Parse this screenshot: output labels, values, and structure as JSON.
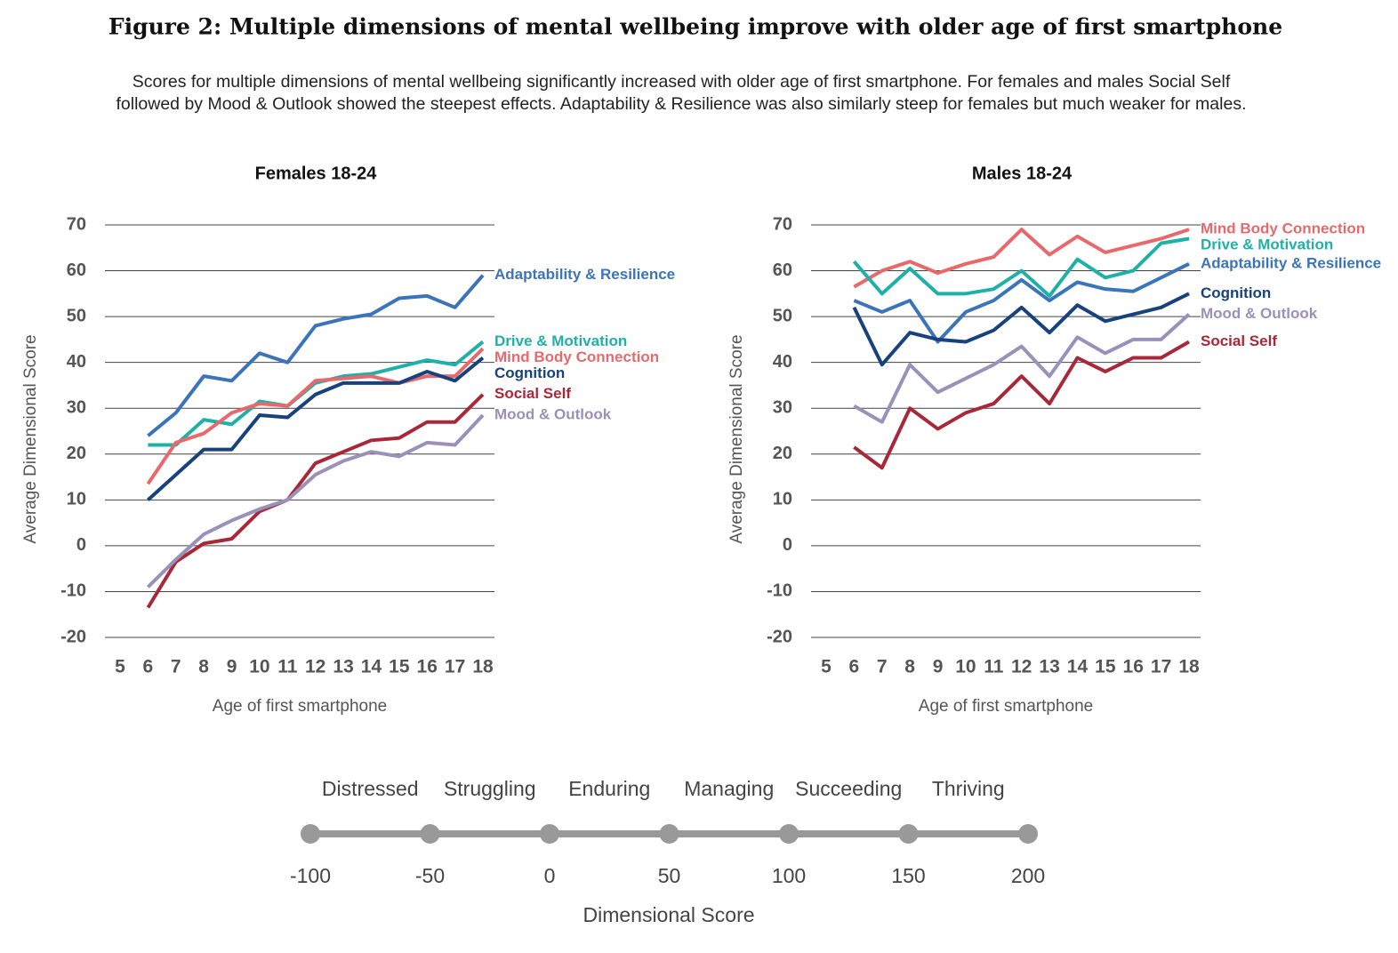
{
  "title": "Figure 2:  Multiple dimensions of mental wellbeing improve with older age of first smartphone",
  "subtitle": [
    "Scores for multiple dimensions of mental wellbeing significantly increased with older age of first smartphone. For females and males Social Self",
    "followed by Mood & Outlook showed the steepest effects. Adaptability & Resilience was also similarly steep for females but much weaker for males."
  ],
  "chart_data": [
    {
      "type": "line",
      "title": "Females 18-24",
      "xlabel": "Age of first smartphone",
      "ylabel": "Average Dimensional Score",
      "x": [
        6,
        7,
        8,
        9,
        10,
        11,
        12,
        13,
        14,
        15,
        16,
        17,
        18
      ],
      "xlim": [
        5,
        18
      ],
      "xticks": [
        5,
        6,
        7,
        8,
        9,
        10,
        11,
        12,
        13,
        14,
        15,
        16,
        17,
        18
      ],
      "ylim": [
        -20,
        70
      ],
      "yticks": [
        -20,
        -10,
        0,
        10,
        20,
        30,
        40,
        50,
        60,
        70
      ],
      "grid": true,
      "series": [
        {
          "name": "Adaptability & Resilience",
          "color": "#3b74b9",
          "values": [
            24,
            29,
            37,
            36,
            42,
            40,
            48,
            49.5,
            50.5,
            54,
            54.5,
            52,
            59
          ]
        },
        {
          "name": "Drive & Motivation",
          "color": "#1fb0a8",
          "values": [
            22,
            22,
            27.5,
            26.5,
            31.5,
            30.5,
            35.5,
            37,
            37.5,
            39,
            40.5,
            39.5,
            44.5
          ]
        },
        {
          "name": "Mind Body Connection",
          "color": "#e8696b",
          "values": [
            13.5,
            22.5,
            24.5,
            29,
            31,
            30.5,
            36,
            36.5,
            37,
            35.5,
            37,
            37,
            43
          ]
        },
        {
          "name": "Cognition",
          "color": "#17427e",
          "values": [
            10,
            15.5,
            21,
            21,
            28.5,
            28,
            33,
            35.5,
            35.5,
            35.5,
            38,
            36,
            41
          ]
        },
        {
          "name": "Social Self",
          "color": "#a8283a",
          "values": [
            -13.5,
            -3.5,
            0.5,
            1.5,
            7.5,
            10,
            18,
            20.5,
            23,
            23.5,
            27,
            27,
            33
          ]
        },
        {
          "name": "Mood & Outlook",
          "color": "#9a91bb",
          "values": [
            -9,
            -3,
            2.5,
            5.5,
            8,
            10,
            15.5,
            18.5,
            20.5,
            19.5,
            22.5,
            22,
            28.5
          ]
        }
      ]
    },
    {
      "type": "line",
      "title": "Males 18-24",
      "xlabel": "Age of first smartphone",
      "ylabel": "Average Dimensional Score",
      "x": [
        6,
        7,
        8,
        9,
        10,
        11,
        12,
        13,
        14,
        15,
        16,
        17,
        18
      ],
      "xlim": [
        5,
        18
      ],
      "xticks": [
        5,
        6,
        7,
        8,
        9,
        10,
        11,
        12,
        13,
        14,
        15,
        16,
        17,
        18
      ],
      "ylim": [
        -20,
        70
      ],
      "yticks": [
        -20,
        -10,
        0,
        10,
        20,
        30,
        40,
        50,
        60,
        70
      ],
      "grid": true,
      "series": [
        {
          "name": "Mind Body Connection",
          "color": "#e8696b",
          "values": [
            56.5,
            60,
            62,
            59.5,
            61.5,
            63,
            69,
            63.5,
            67.5,
            64,
            65.5,
            67,
            69
          ]
        },
        {
          "name": "Drive & Motivation",
          "color": "#1fb0a8",
          "values": [
            62,
            55,
            60.5,
            55,
            55,
            56,
            60,
            54.5,
            62.5,
            58.5,
            60,
            66,
            67
          ]
        },
        {
          "name": "Adaptability & Resilience",
          "color": "#3b74b9",
          "values": [
            53.5,
            51,
            53.5,
            44.5,
            51,
            53.5,
            58,
            53.5,
            57.5,
            56,
            55.5,
            58.5,
            61.5
          ]
        },
        {
          "name": "Cognition",
          "color": "#17427e",
          "values": [
            52,
            39.5,
            46.5,
            45,
            44.5,
            47,
            52,
            46.5,
            52.5,
            49,
            50.5,
            52,
            55
          ]
        },
        {
          "name": "Mood & Outlook",
          "color": "#9a91bb",
          "values": [
            30.5,
            27,
            39.5,
            33.5,
            36.5,
            39.5,
            43.5,
            37,
            45.5,
            42,
            45,
            45,
            50.5
          ]
        },
        {
          "name": "Social Self",
          "color": "#a8283a",
          "values": [
            21.5,
            17,
            30,
            25.5,
            29,
            31,
            37,
            31,
            41,
            38,
            41,
            41,
            44.5
          ]
        }
      ]
    }
  ],
  "scale": {
    "categories": [
      "Distressed",
      "Struggling",
      "Enduring",
      "Managing",
      "Succeeding",
      "Thriving"
    ],
    "ticks": [
      -100,
      -50,
      0,
      50,
      100,
      150,
      200
    ],
    "xlim": [
      -100,
      200
    ],
    "xlabel": "Dimensional Score",
    "color": "#999999"
  }
}
